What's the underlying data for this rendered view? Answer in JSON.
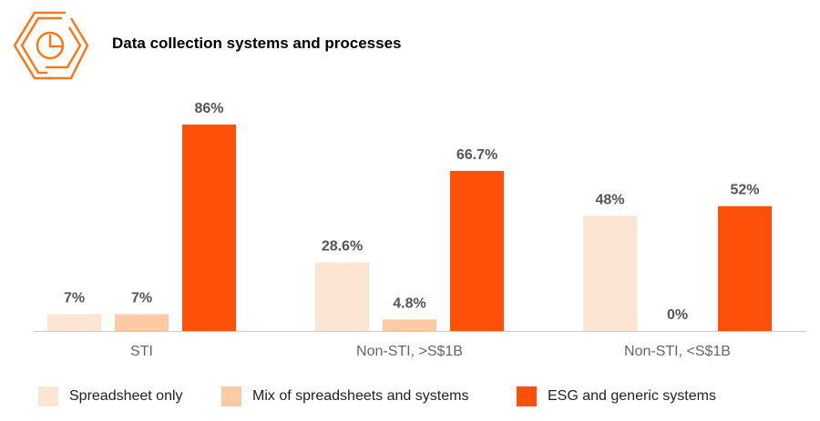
{
  "title": "Data collection systems and processes",
  "icon": "hexagon-pie-chart-icon",
  "colors": {
    "spreadsheet": "#FDE5D3",
    "mix": "#FDCAA6",
    "esg": "#FE5009",
    "label": "#555555",
    "axis": "#cccccc"
  },
  "chart_data": {
    "type": "bar",
    "categories": [
      "STI",
      "Non-STI, >S$1B",
      "Non-STI, <S$1B"
    ],
    "series": [
      {
        "name": "Spreadsheet only",
        "values": [
          7,
          28.6,
          48
        ],
        "labels": [
          "7%",
          "28.6%",
          "48%"
        ]
      },
      {
        "name": "Mix of spreadsheets and systems",
        "values": [
          7,
          4.8,
          0
        ],
        "labels": [
          "7%",
          "4.8%",
          "0%"
        ]
      },
      {
        "name": "ESG and generic systems",
        "values": [
          86,
          66.7,
          52
        ],
        "labels": [
          "86%",
          "66.7%",
          "52%"
        ]
      }
    ],
    "ylim": [
      0,
      100
    ],
    "grid": false,
    "legend": "bottom"
  }
}
